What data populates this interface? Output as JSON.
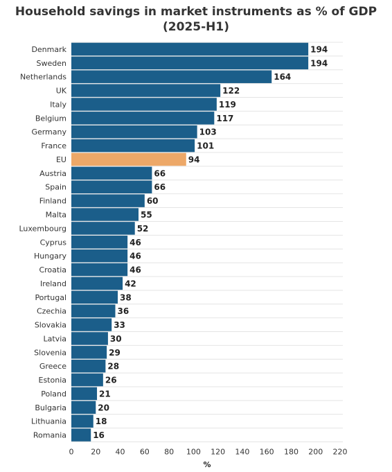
{
  "chart_data": {
    "type": "bar",
    "orientation": "horizontal",
    "title": "Household savings in market instruments as % of GDP",
    "subtitle": "(2025-H1)",
    "xlabel": "%",
    "ylabel": "",
    "xlim": [
      0,
      220
    ],
    "xticks": [
      "0",
      "20",
      "40",
      "60",
      "80",
      "100",
      "120",
      "140",
      "160",
      "180",
      "200",
      "220"
    ],
    "grid": "horizontal light lines between categories",
    "highlight_category": "EU",
    "colors": {
      "bar": "#1b5e8a",
      "highlight": "#eda868",
      "grid": "#e4e4e4"
    },
    "categories": [
      "Denmark",
      "Sweden",
      "Netherlands",
      "UK",
      "Italy",
      "Belgium",
      "Germany",
      "France",
      "EU",
      "Austria",
      "Spain",
      "Finland",
      "Malta",
      "Luxembourg",
      "Cyprus",
      "Hungary",
      "Croatia",
      "Ireland",
      "Portugal",
      "Czechia",
      "Slovakia",
      "Latvia",
      "Slovenia",
      "Greece",
      "Estonia",
      "Poland",
      "Bulgaria",
      "Lithuania",
      "Romania"
    ],
    "values": [
      194,
      194,
      164,
      122,
      119,
      117,
      103,
      101,
      94,
      66,
      66,
      60,
      55,
      52,
      46,
      46,
      46,
      42,
      38,
      36,
      33,
      30,
      29,
      28,
      26,
      21,
      20,
      18,
      16
    ]
  }
}
